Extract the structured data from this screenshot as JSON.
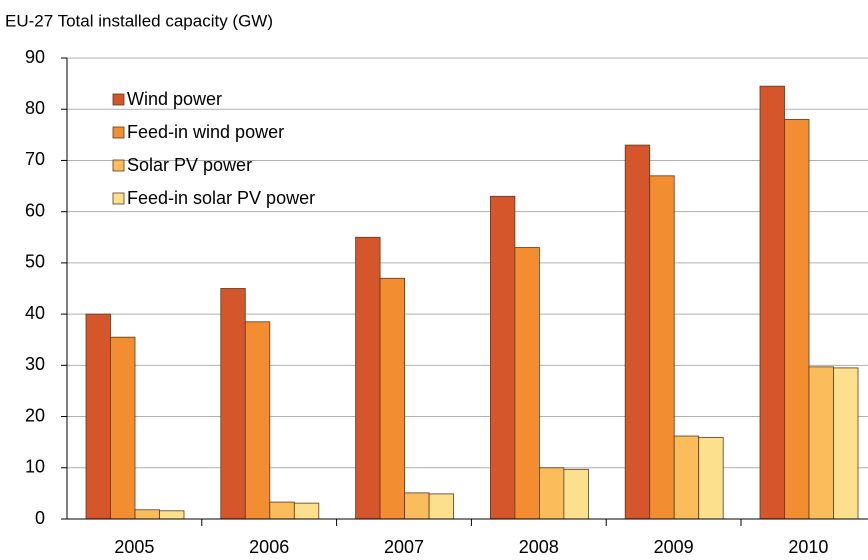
{
  "chart_data": {
    "type": "bar",
    "title": "EU-27 Total installed capacity (GW)",
    "categories": [
      "2005",
      "2006",
      "2007",
      "2008",
      "2009",
      "2010"
    ],
    "series": [
      {
        "name": "Wind power",
        "color": "#d4562a",
        "values": [
          40,
          45,
          55,
          63,
          73,
          84.5
        ]
      },
      {
        "name": "Feed-in wind power",
        "color": "#f28d32",
        "values": [
          35.5,
          38.5,
          47,
          53,
          67,
          78
        ]
      },
      {
        "name": "Solar PV power",
        "color": "#fbbd5c",
        "values": [
          1.8,
          3.3,
          5.1,
          10,
          16.2,
          29.7
        ]
      },
      {
        "name": "Feed-in solar PV power",
        "color": "#fde08e",
        "values": [
          1.6,
          3.1,
          4.9,
          9.7,
          15.9,
          29.5
        ]
      }
    ],
    "ylim": [
      0,
      90
    ],
    "yticks": [
      0,
      10,
      20,
      30,
      40,
      50,
      60,
      70,
      80,
      90
    ],
    "grid": true,
    "legend": "upper left"
  }
}
